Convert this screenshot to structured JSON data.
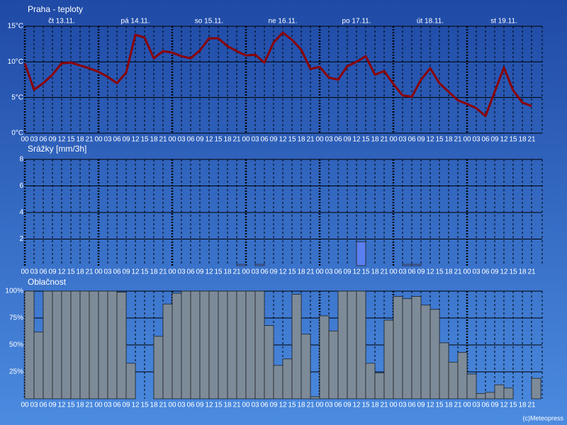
{
  "chart_data": [
    {
      "type": "line",
      "title": "Praha - teploty",
      "color": "#8b0000",
      "grid": true,
      "day_labels": [
        "čt 13.11.",
        "pá 14.11.",
        "so 15.11.",
        "ne 16.11.",
        "po 17.11.",
        "út 18.11.",
        "st 19.11."
      ],
      "categories": [
        "00",
        "03",
        "06",
        "09",
        "12",
        "15",
        "18",
        "21",
        "00",
        "03",
        "06",
        "09",
        "12",
        "15",
        "18",
        "21",
        "00",
        "03",
        "06",
        "09",
        "12",
        "15",
        "18",
        "21",
        "00",
        "03",
        "06",
        "09",
        "12",
        "15",
        "18",
        "21",
        "00",
        "03",
        "06",
        "09",
        "12",
        "15",
        "18",
        "21",
        "00",
        "03",
        "06",
        "09",
        "12",
        "15",
        "18",
        "21",
        "00",
        "03",
        "06",
        "09",
        "12",
        "15",
        "18",
        "21"
      ],
      "values": [
        9.8,
        6.1,
        7.0,
        8.2,
        9.8,
        9.9,
        9.5,
        9.1,
        8.6,
        7.9,
        7.0,
        8.5,
        13.8,
        13.4,
        10.5,
        11.5,
        11.3,
        10.8,
        10.5,
        11.6,
        13.3,
        13.3,
        12.2,
        11.5,
        10.9,
        11.0,
        9.9,
        12.7,
        14.1,
        13.1,
        11.7,
        9.0,
        9.3,
        7.8,
        7.5,
        9.4,
        10.0,
        10.8,
        8.2,
        8.7,
        6.9,
        5.3,
        5.1,
        7.5,
        9.1,
        7.0,
        5.8,
        4.6,
        4.1,
        3.5,
        2.4,
        5.8,
        9.2,
        6.0,
        4.3,
        3.8
      ],
      "ylim": [
        0,
        15
      ],
      "yticks": [
        {
          "value": 0,
          "label": "0°C"
        },
        {
          "value": 5,
          "label": "5°C"
        },
        {
          "value": 10,
          "label": "10°C"
        },
        {
          "value": 15,
          "label": "15°C"
        }
      ]
    },
    {
      "type": "bar",
      "title": "Srážky [mm/3h]",
      "color": "#5a7ff0",
      "grid": true,
      "categories": [
        "00",
        "03",
        "06",
        "09",
        "12",
        "15",
        "18",
        "21",
        "00",
        "03",
        "06",
        "09",
        "12",
        "15",
        "18",
        "21",
        "00",
        "03",
        "06",
        "09",
        "12",
        "15",
        "18",
        "21",
        "00",
        "03",
        "06",
        "09",
        "12",
        "15",
        "18",
        "21",
        "00",
        "03",
        "06",
        "09",
        "12",
        "15",
        "18",
        "21",
        "00",
        "03",
        "06",
        "09",
        "12",
        "15",
        "18",
        "21",
        "00",
        "03",
        "06",
        "09",
        "12",
        "15",
        "18",
        "21"
      ],
      "values": [
        0,
        0,
        0,
        0,
        0,
        0,
        0,
        0,
        0,
        0,
        0,
        0,
        0,
        0,
        0,
        0,
        0,
        0,
        0,
        0,
        0,
        0,
        0,
        0.1,
        0,
        0.1,
        0,
        0,
        0,
        0,
        0,
        0,
        0,
        0,
        0,
        0,
        1.8,
        0,
        0,
        0,
        0,
        0.1,
        0.1,
        0,
        0,
        0,
        0,
        0,
        0,
        0,
        0,
        0,
        0,
        0,
        0,
        0
      ],
      "ylim": [
        0,
        8
      ],
      "yticks": [
        2,
        4,
        6,
        8
      ]
    },
    {
      "type": "bar",
      "title": "Oblačnost",
      "color": "#7d8b99",
      "grid": true,
      "categories": [
        "00",
        "03",
        "06",
        "09",
        "12",
        "15",
        "18",
        "21",
        "00",
        "03",
        "06",
        "09",
        "12",
        "15",
        "18",
        "21",
        "00",
        "03",
        "06",
        "09",
        "12",
        "15",
        "18",
        "21",
        "00",
        "03",
        "06",
        "09",
        "12",
        "15",
        "18",
        "21",
        "00",
        "03",
        "06",
        "09",
        "12",
        "15",
        "18",
        "21",
        "00",
        "03",
        "06",
        "09",
        "12",
        "15",
        "18",
        "21",
        "00",
        "03",
        "06",
        "09",
        "12",
        "15",
        "18",
        "21"
      ],
      "values": [
        100,
        62,
        100,
        100,
        100,
        100,
        100,
        100,
        100,
        100,
        99,
        33,
        0,
        0,
        58,
        88,
        98,
        100,
        100,
        100,
        100,
        100,
        100,
        100,
        100,
        100,
        68,
        31,
        37,
        97,
        60,
        2,
        77,
        63,
        100,
        100,
        100,
        33,
        24,
        73,
        95,
        93,
        95,
        87,
        83,
        52,
        34,
        43,
        23,
        5,
        6,
        13,
        10,
        0,
        0,
        19
      ],
      "ylim": [
        0,
        100
      ],
      "yticks": [
        {
          "value": 25,
          "label": "25%"
        },
        {
          "value": 50,
          "label": "50%"
        },
        {
          "value": 75,
          "label": "75%"
        },
        {
          "value": 100,
          "label": "100%"
        }
      ]
    }
  ],
  "credit": "(c)Meteopress"
}
